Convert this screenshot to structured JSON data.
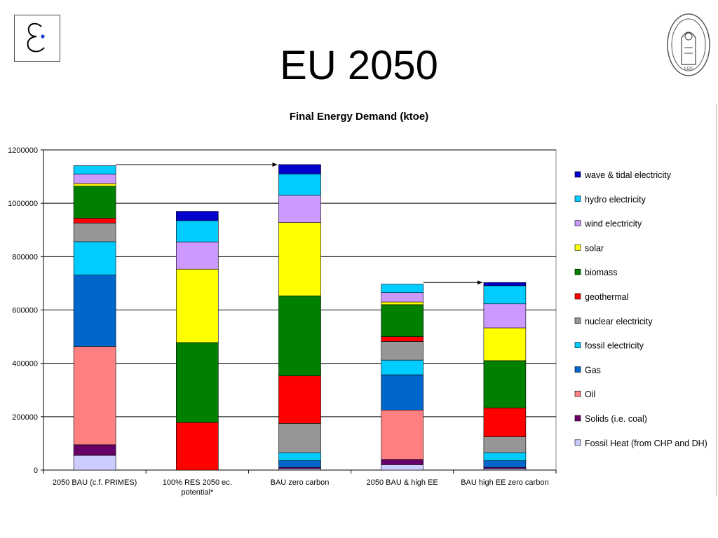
{
  "slide": {
    "title": "EU 2050"
  },
  "logo": {
    "name": "epsilon-logo"
  },
  "seal": {
    "name": "university-seal",
    "text": "1425"
  },
  "colors": {
    "wave": "#0000cc",
    "hydro": "#00ccff",
    "wind": "#cc99ff",
    "solar": "#ffff00",
    "biomass": "#008000",
    "geothermal": "#ff0000",
    "nuclear": "#969696",
    "fossil_elec": "#00ccff",
    "gas": "#0066cc",
    "oil": "#ff8080",
    "solids": "#660066",
    "fossil_heat": "#ccccff"
  },
  "chart_data": {
    "type": "bar",
    "stacked": true,
    "title": "Final Energy Demand (ktoe)",
    "xlabel": "",
    "ylabel": "",
    "ylim": [
      0,
      1200000
    ],
    "yticks": [
      0,
      200000,
      400000,
      600000,
      800000,
      1000000,
      1200000
    ],
    "ytick_labels": [
      "0",
      "200000",
      "400000",
      "600000",
      "800000",
      "1000000",
      "1200000"
    ],
    "categories": [
      "2050 BAU (c.f. PRIMES)",
      "100% RES 2050 ec. potential*",
      "BAU zero carbon",
      "2050 BAU & high EE",
      "BAU high EE zero carbon"
    ],
    "category_lines": [
      [
        "2050 BAU (c.f. PRIMES)"
      ],
      [
        "100% RES 2050 ec.",
        "potential*"
      ],
      [
        "BAU zero carbon"
      ],
      [
        "2050 BAU & high EE"
      ],
      [
        "BAU high EE zero carbon"
      ]
    ],
    "grid": true,
    "legend_position": "right",
    "series": [
      {
        "name": "Fossil Heat (from CHP and DH)",
        "color_key": "fossil_heat",
        "values": [
          55000,
          0,
          5000,
          20000,
          5000
        ]
      },
      {
        "name": "Solids (i.e. coal)",
        "color_key": "solids",
        "values": [
          40000,
          0,
          5000,
          20000,
          5000
        ]
      },
      {
        "name": "Oil",
        "color_key": "oil",
        "values": [
          368000,
          0,
          0,
          185000,
          0
        ]
      },
      {
        "name": "Gas",
        "color_key": "gas",
        "values": [
          268000,
          0,
          25000,
          132000,
          25000
        ]
      },
      {
        "name": "fossil electricity",
        "color_key": "fossil_elec",
        "values": [
          125000,
          0,
          30000,
          55000,
          30000
        ]
      },
      {
        "name": "nuclear electricity",
        "color_key": "nuclear",
        "values": [
          70000,
          0,
          110000,
          70000,
          60000
        ]
      },
      {
        "name": "geothermal",
        "color_key": "geothermal",
        "values": [
          18000,
          178000,
          178000,
          18000,
          108000
        ]
      },
      {
        "name": "biomass",
        "color_key": "biomass",
        "values": [
          120000,
          300000,
          300000,
          120000,
          177000
        ]
      },
      {
        "name": "solar",
        "color_key": "solar",
        "values": [
          10000,
          275000,
          275000,
          10000,
          123000
        ]
      },
      {
        "name": "wind  electricity",
        "color_key": "wind",
        "values": [
          35000,
          102000,
          102000,
          35000,
          90000
        ]
      },
      {
        "name": "hydro  electricity",
        "color_key": "hydro",
        "values": [
          32000,
          80000,
          80000,
          32000,
          68000
        ]
      },
      {
        "name": "wave & tidal electricity",
        "color_key": "wave",
        "values": [
          0,
          35000,
          35000,
          0,
          12000
        ]
      }
    ],
    "arrows": [
      {
        "from": 0,
        "to": 2,
        "level": 1145000
      },
      {
        "from": 3,
        "to": 4,
        "level": 703000
      }
    ]
  }
}
